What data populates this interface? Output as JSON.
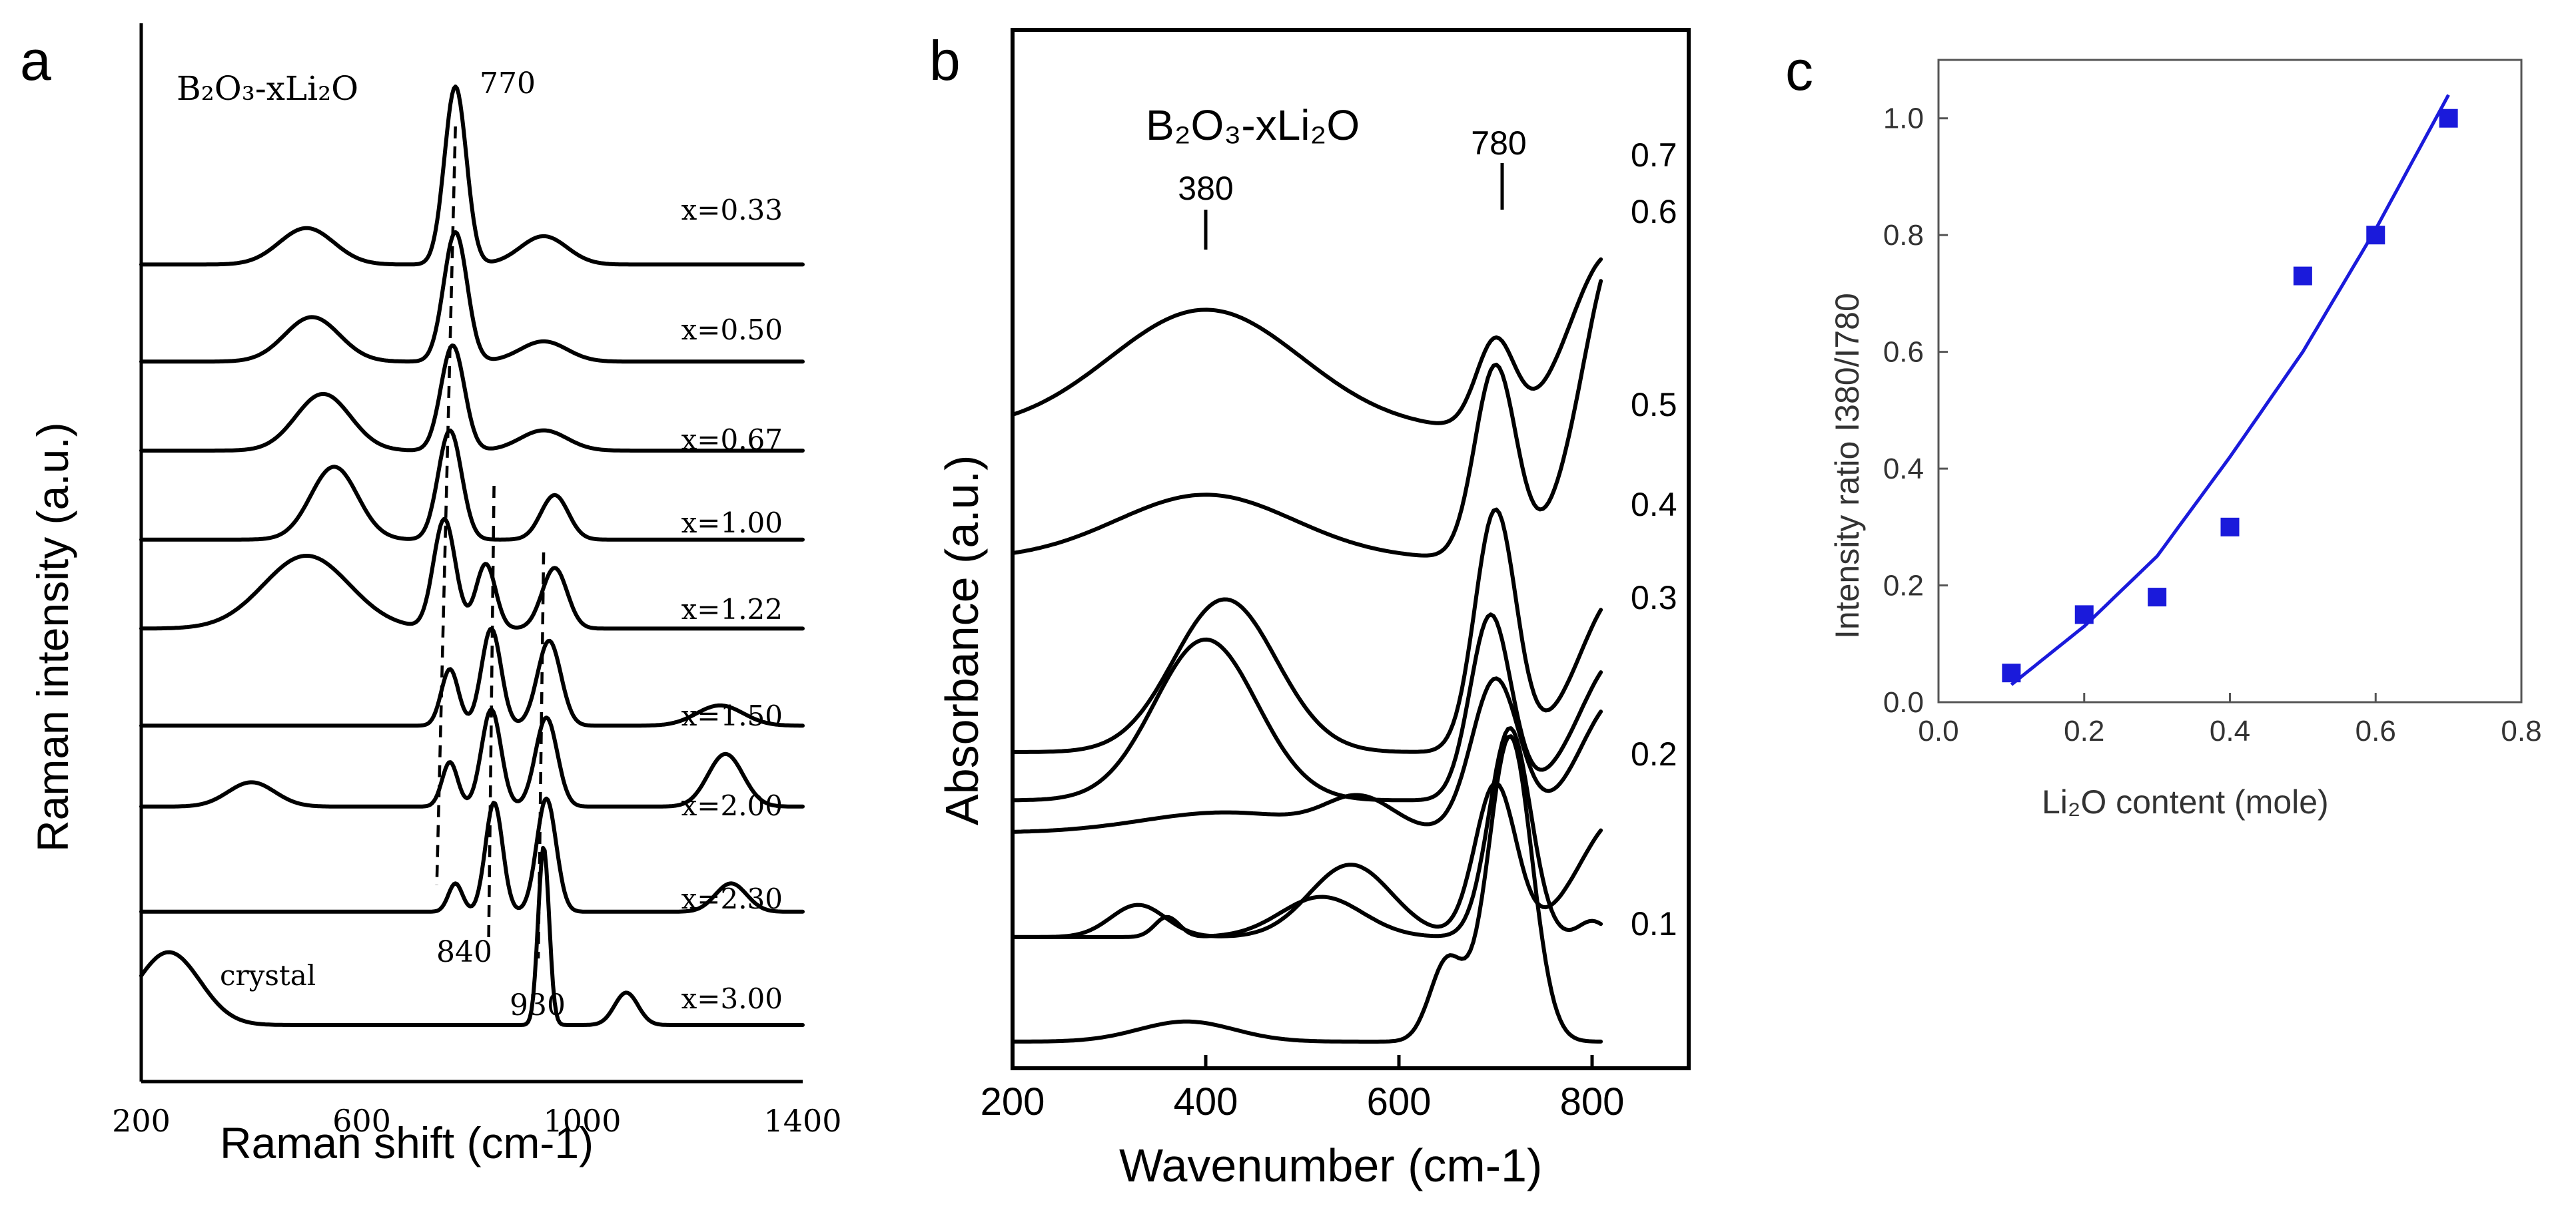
{
  "chart_data": [
    {
      "panel": "a",
      "type": "line",
      "title": "B₂O₃-xLi₂O",
      "xlabel": "Raman shift (cm-1)",
      "ylabel": "Raman intensity (a.u.)",
      "xlim": [
        200,
        1400
      ],
      "xticks": [
        200,
        600,
        1000,
        1400
      ],
      "annotations": [
        {
          "text": "770",
          "x": 770
        },
        {
          "text": "840",
          "x": 840
        },
        {
          "text": "930",
          "x": 930
        }
      ],
      "dashed_guides": [
        770,
        840,
        930
      ],
      "series": [
        {
          "name": "x=0.33",
          "baseline": 9.4,
          "peaks": [
            {
              "x": 500,
              "h": 0.45,
              "w": 70
            },
            {
              "x": 770,
              "h": 2.2,
              "w": 28
            },
            {
              "x": 930,
              "h": 0.35,
              "w": 60
            }
          ]
        },
        {
          "name": "x=0.50",
          "baseline": 8.2,
          "peaks": [
            {
              "x": 510,
              "h": 0.55,
              "w": 70
            },
            {
              "x": 770,
              "h": 1.6,
              "w": 30
            },
            {
              "x": 930,
              "h": 0.25,
              "w": 60
            }
          ]
        },
        {
          "name": "x=0.67",
          "baseline": 7.1,
          "peaks": [
            {
              "x": 530,
              "h": 0.7,
              "w": 70
            },
            {
              "x": 765,
              "h": 1.3,
              "w": 30
            },
            {
              "x": 930,
              "h": 0.25,
              "w": 60
            }
          ]
        },
        {
          "name": "x=1.00",
          "baseline": 6.0,
          "peaks": [
            {
              "x": 550,
              "h": 0.9,
              "w": 60
            },
            {
              "x": 760,
              "h": 1.35,
              "w": 30
            },
            {
              "x": 950,
              "h": 0.55,
              "w": 35
            }
          ]
        },
        {
          "name": "x=1.22",
          "baseline": 4.9,
          "peaks": [
            {
              "x": 500,
              "h": 0.9,
              "w": 110
            },
            {
              "x": 750,
              "h": 1.35,
              "w": 28
            },
            {
              "x": 825,
              "h": 0.8,
              "w": 25
            },
            {
              "x": 950,
              "h": 0.75,
              "w": 32
            }
          ]
        },
        {
          "name": "x=1.50",
          "baseline": 3.7,
          "peaks": [
            {
              "x": 760,
              "h": 0.7,
              "w": 22
            },
            {
              "x": 835,
              "h": 1.2,
              "w": 25
            },
            {
              "x": 940,
              "h": 1.05,
              "w": 30
            },
            {
              "x": 1250,
              "h": 0.25,
              "w": 60
            }
          ]
        },
        {
          "name": "x=2.00",
          "baseline": 2.7,
          "peaks": [
            {
              "x": 400,
              "h": 0.3,
              "w": 60
            },
            {
              "x": 760,
              "h": 0.55,
              "w": 20
            },
            {
              "x": 835,
              "h": 1.2,
              "w": 25
            },
            {
              "x": 935,
              "h": 1.1,
              "w": 28
            },
            {
              "x": 1260,
              "h": 0.65,
              "w": 45
            }
          ]
        },
        {
          "name": "x=2.30",
          "baseline": 1.4,
          "peaks": [
            {
              "x": 770,
              "h": 0.35,
              "w": 18
            },
            {
              "x": 840,
              "h": 1.35,
              "w": 22
            },
            {
              "x": 935,
              "h": 1.4,
              "w": 25
            },
            {
              "x": 1270,
              "h": 0.35,
              "w": 40
            }
          ]
        },
        {
          "name": "crystal",
          "baseline": 0.0,
          "peaks": [
            {
              "x": 250,
              "h": 0.9,
              "w": 80
            },
            {
              "x": 930,
              "h": 2.2,
              "w": 14
            },
            {
              "x": 1080,
              "h": 0.4,
              "w": 30
            }
          ]
        }
      ],
      "curve_labels": [
        "x=0.33",
        "x=0.50",
        "x=0.67",
        "x=1.00",
        "x=1.22",
        "x=1.50",
        "x=2.00",
        "x=2.30",
        "x=3.00"
      ],
      "crystal_label": "crystal"
    },
    {
      "panel": "b",
      "type": "line",
      "title": "B₂O₃-xLi₂O",
      "xlabel": "Wavenumber (cm-1)",
      "ylabel": "Absorbance (a.u.)",
      "xlim": [
        200,
        900
      ],
      "xticks": [
        200,
        400,
        600,
        800
      ],
      "annotations": [
        {
          "text": "380",
          "x": 380
        },
        {
          "text": "780",
          "x": 780
        }
      ],
      "series": [
        {
          "name": "0.7",
          "baseline": 7.6,
          "slope": 0.0,
          "peaks": [
            {
              "x": 400,
              "h": 1.5,
              "w": 140
            },
            {
              "x": 700,
              "h": 1.1,
              "w": 28
            },
            {
              "x": 820,
              "h": 2.2,
              "w": 60
            }
          ]
        },
        {
          "name": "0.6",
          "baseline": 6.0,
          "slope": 0.0,
          "peaks": [
            {
              "x": 400,
              "h": 0.8,
              "w": 130
            },
            {
              "x": 700,
              "h": 2.4,
              "w": 30
            },
            {
              "x": 830,
              "h": 4.0,
              "w": 55
            }
          ]
        },
        {
          "name": "0.5",
          "baseline": 3.6,
          "slope": 0.0,
          "peaks": [
            {
              "x": 420,
              "h": 1.9,
              "w": 75
            },
            {
              "x": 700,
              "h": 3.0,
              "w": 30
            },
            {
              "x": 830,
              "h": 2.0,
              "w": 60
            }
          ]
        },
        {
          "name": "0.4",
          "baseline": 3.0,
          "slope": 0.0,
          "peaks": [
            {
              "x": 400,
              "h": 2.0,
              "w": 75
            },
            {
              "x": 695,
              "h": 2.3,
              "w": 30
            },
            {
              "x": 830,
              "h": 1.8,
              "w": 60
            }
          ]
        },
        {
          "name": "0.3",
          "baseline": 2.6,
          "slope": 0.0,
          "peaks": [
            {
              "x": 420,
              "h": 0.25,
              "w": 120
            },
            {
              "x": 560,
              "h": 0.4,
              "w": 50
            },
            {
              "x": 700,
              "h": 1.9,
              "w": 35
            },
            {
              "x": 830,
              "h": 1.7,
              "w": 60
            }
          ]
        },
        {
          "name": "0.2",
          "baseline": 1.3,
          "slope": 0.0,
          "peaks": [
            {
              "x": 330,
              "h": 0.4,
              "w": 40
            },
            {
              "x": 550,
              "h": 0.9,
              "w": 60
            },
            {
              "x": 700,
              "h": 1.9,
              "w": 30
            },
            {
              "x": 830,
              "h": 1.5,
              "w": 60
            }
          ]
        },
        {
          "name": "0.1",
          "baseline": 1.3,
          "slope": 0.0,
          "peaks": [
            {
              "x": 360,
              "h": 0.25,
              "w": 18
            },
            {
              "x": 520,
              "h": 0.5,
              "w": 60
            },
            {
              "x": 715,
              "h": 2.6,
              "w": 30
            },
            {
              "x": 800,
              "h": 0.2,
              "w": 20
            }
          ]
        },
        {
          "name": "",
          "baseline": 0.0,
          "slope": 0.0,
          "peaks": [
            {
              "x": 380,
              "h": 0.25,
              "w": 70
            },
            {
              "x": 650,
              "h": 1.0,
              "w": 25
            },
            {
              "x": 715,
              "h": 3.8,
              "w": 32
            }
          ]
        }
      ],
      "curve_labels": [
        "0.7",
        "0.6",
        "0.5",
        "0.4",
        "0.3",
        "0.2",
        "0.1"
      ]
    },
    {
      "panel": "c",
      "type": "scatter",
      "title": "",
      "xlabel": "Li₂O content (mole)",
      "ylabel": "Intensity ratio I380/I780",
      "xlim": [
        0.0,
        0.8
      ],
      "ylim": [
        0.0,
        1.1
      ],
      "xticks": [
        "0.0",
        "0.2",
        "0.4",
        "0.6",
        "0.8"
      ],
      "yticks": [
        "0.0",
        "0.2",
        "0.4",
        "0.6",
        "0.8",
        "1.0"
      ],
      "points": [
        {
          "x": 0.1,
          "y": 0.05
        },
        {
          "x": 0.2,
          "y": 0.15
        },
        {
          "x": 0.3,
          "y": 0.18
        },
        {
          "x": 0.4,
          "y": 0.3
        },
        {
          "x": 0.5,
          "y": 0.73
        },
        {
          "x": 0.6,
          "y": 0.8
        },
        {
          "x": 0.7,
          "y": 1.0
        }
      ],
      "fit_curve": {
        "x": [
          0.1,
          0.2,
          0.3,
          0.4,
          0.5,
          0.6,
          0.7
        ],
        "y": [
          0.03,
          0.13,
          0.25,
          0.42,
          0.6,
          0.81,
          1.04
        ]
      },
      "colors": {
        "points": "#1a1adb",
        "fit": "#1a1adb"
      }
    }
  ],
  "labels": {
    "a": "a",
    "b": "b",
    "c": "c"
  }
}
